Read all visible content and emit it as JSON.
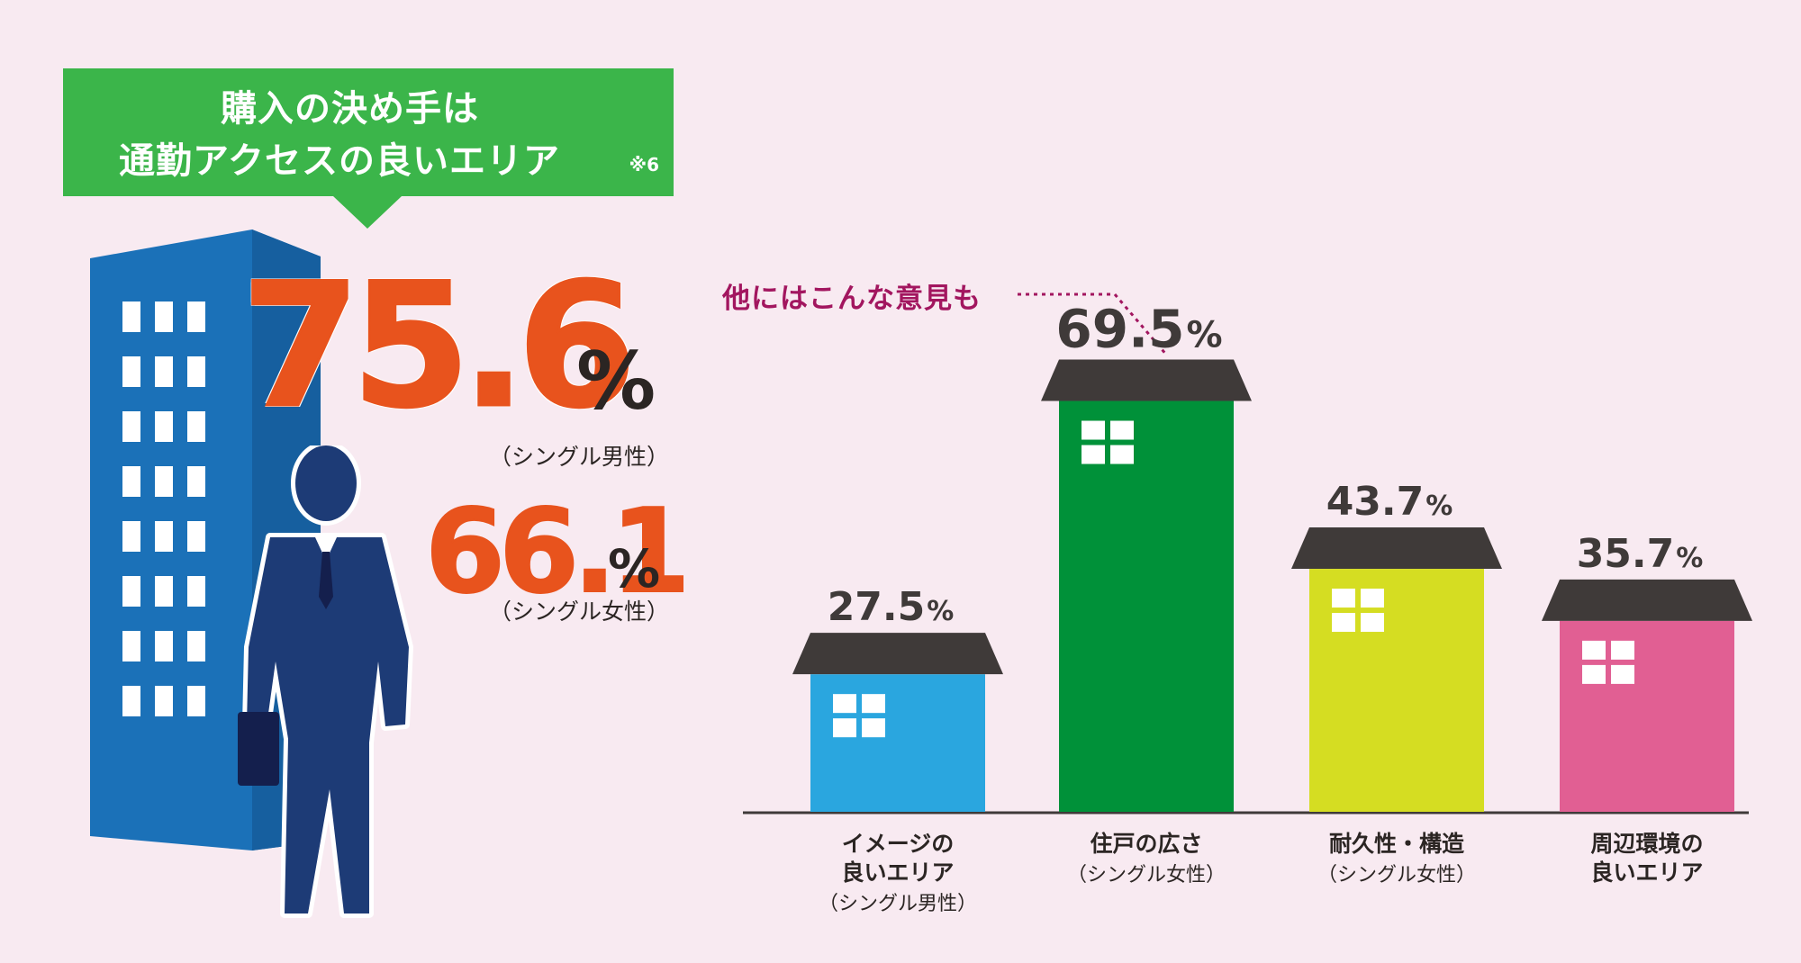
{
  "headline": {
    "line1": "購入の決め手は",
    "line2": "通勤アクセスの良いエリア",
    "note": "※6"
  },
  "main_stats": [
    {
      "value": "75.6",
      "unit": "%",
      "caption": "（シングル男性）"
    },
    {
      "value": "66.1",
      "unit": "%",
      "caption": "（シングル女性）"
    }
  ],
  "other_opinions_label": "他にはこんな意見も",
  "chart_data": {
    "type": "bar",
    "title": "",
    "xlabel": "",
    "ylabel": "",
    "categories": [
      {
        "name_lines": [
          "イメージの",
          "良いエリア"
        ],
        "subgroup": "（シングル男性）",
        "value": 27.5,
        "value_label": "27.5",
        "unit": "%",
        "color": "#2aa6df"
      },
      {
        "name_lines": [
          "住戸の広さ"
        ],
        "subgroup": "（シングル女性）",
        "value": 69.5,
        "value_label": "69.5",
        "unit": "%",
        "color": "#009139"
      },
      {
        "name_lines": [
          "耐久性・構造"
        ],
        "subgroup": "（シングル女性）",
        "value": 43.7,
        "value_label": "43.7",
        "unit": "%",
        "color": "#d5dd22"
      },
      {
        "name_lines": [
          "周辺環境の",
          "良いエリア"
        ],
        "subgroup": "",
        "value": 35.7,
        "value_label": "35.7",
        "unit": "%",
        "color": "#e15f93"
      }
    ],
    "ylim": [
      0,
      80
    ],
    "grid": false,
    "legend": "none"
  },
  "colors": {
    "background": "#f8eaf1",
    "headline_green": "#3bb54a",
    "stat_orange": "#e8531d",
    "text_dark": "#2b2523",
    "accent_magenta": "#a2165f",
    "building_blue": "#1b71b8",
    "person_navy": "#1d3b76",
    "roof_dark": "#3f3a39",
    "baseline": "#3f3a39"
  },
  "icons": {
    "building": "office-building-icon",
    "businessman": "businessman-walking-icon",
    "house": "house-icon",
    "window": "window-icon"
  }
}
